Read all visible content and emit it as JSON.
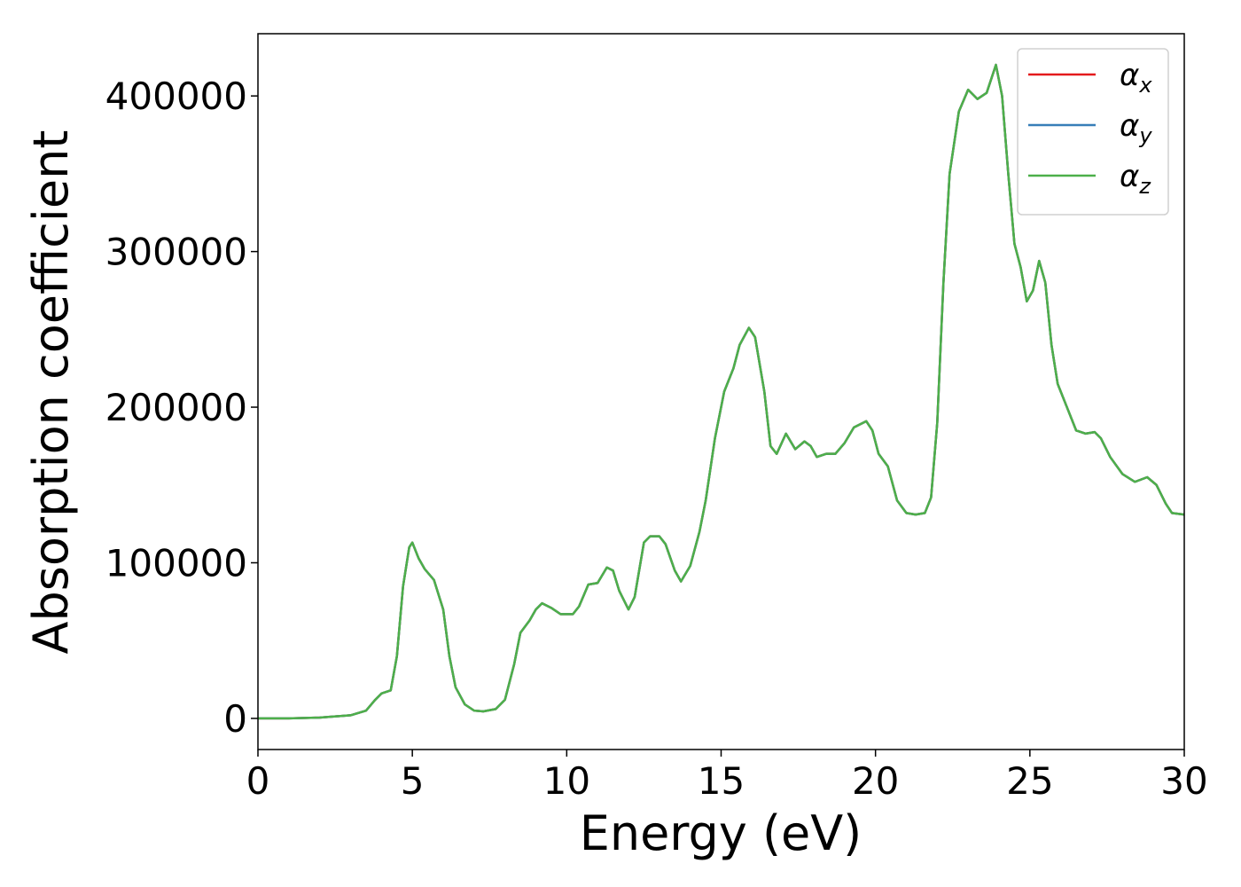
{
  "chart_data": {
    "type": "line",
    "xlabel": "Energy (eV)",
    "ylabel": "Absorption coefficient",
    "xlim": [
      0,
      30
    ],
    "ylim": [
      -20000,
      440000
    ],
    "xticks": [
      0,
      5,
      10,
      15,
      20,
      25,
      30
    ],
    "yticks": [
      0,
      100000,
      200000,
      300000,
      400000
    ],
    "legend": "upper right",
    "x": [
      0,
      1,
      2,
      3,
      3.5,
      3.8,
      4,
      4.3,
      4.5,
      4.7,
      4.9,
      5.0,
      5.2,
      5.4,
      5.7,
      6.0,
      6.2,
      6.4,
      6.7,
      7.0,
      7.3,
      7.7,
      8.0,
      8.3,
      8.5,
      8.8,
      9.0,
      9.2,
      9.5,
      9.8,
      10.2,
      10.4,
      10.7,
      11.0,
      11.3,
      11.5,
      11.7,
      12.0,
      12.2,
      12.5,
      12.7,
      13.0,
      13.2,
      13.5,
      13.7,
      14.0,
      14.3,
      14.5,
      14.8,
      15.1,
      15.4,
      15.6,
      15.9,
      16.1,
      16.4,
      16.6,
      16.8,
      17.1,
      17.4,
      17.7,
      17.9,
      18.1,
      18.4,
      18.7,
      19.0,
      19.3,
      19.7,
      19.9,
      20.1,
      20.4,
      20.7,
      21.0,
      21.3,
      21.6,
      21.8,
      22.0,
      22.2,
      22.4,
      22.7,
      23.0,
      23.3,
      23.6,
      23.9,
      24.1,
      24.3,
      24.5,
      24.7,
      24.9,
      25.1,
      25.3,
      25.5,
      25.7,
      25.9,
      26.2,
      26.5,
      26.8,
      27.1,
      27.3,
      27.6,
      28.0,
      28.4,
      28.8,
      29.1,
      29.4,
      29.6,
      30.0
    ],
    "series": [
      {
        "name": "αx",
        "color": "#e41a1c",
        "values": [
          0,
          0,
          500,
          2000,
          5000,
          12000,
          16000,
          18000,
          40000,
          85000,
          110000,
          113000,
          103000,
          96000,
          89000,
          70000,
          40000,
          20000,
          9000,
          5000,
          4500,
          6000,
          12000,
          35000,
          55000,
          63000,
          70000,
          74000,
          71000,
          67000,
          67000,
          72000,
          86000,
          87000,
          97000,
          95000,
          82000,
          70000,
          78000,
          113000,
          117000,
          117000,
          112000,
          95000,
          88000,
          98000,
          120000,
          140000,
          180000,
          210000,
          225000,
          240000,
          251000,
          245000,
          210000,
          175000,
          170000,
          183000,
          173000,
          178000,
          175000,
          168000,
          170000,
          170000,
          177000,
          187000,
          191000,
          185000,
          170000,
          162000,
          140000,
          132000,
          131000,
          132000,
          142000,
          190000,
          280000,
          350000,
          390000,
          404000,
          398000,
          402000,
          420000,
          400000,
          350000,
          305000,
          290000,
          268000,
          275000,
          294000,
          280000,
          240000,
          215000,
          200000,
          185000,
          183000,
          184000,
          180000,
          168000,
          157000,
          152000,
          155000,
          150000,
          138000,
          132000,
          131000
        ]
      },
      {
        "name": "αy",
        "color": "#377eb8",
        "values": [
          0,
          0,
          500,
          2000,
          5000,
          12000,
          16000,
          18000,
          40000,
          85000,
          110000,
          113000,
          103000,
          96000,
          89000,
          70000,
          40000,
          20000,
          9000,
          5000,
          4500,
          6000,
          12000,
          35000,
          55000,
          63000,
          70000,
          74000,
          71000,
          67000,
          67000,
          72000,
          86000,
          87000,
          97000,
          95000,
          82000,
          70000,
          78000,
          113000,
          117000,
          117000,
          112000,
          95000,
          88000,
          98000,
          120000,
          140000,
          180000,
          210000,
          225000,
          240000,
          251000,
          245000,
          210000,
          175000,
          170000,
          183000,
          173000,
          178000,
          175000,
          168000,
          170000,
          170000,
          177000,
          187000,
          191000,
          185000,
          170000,
          162000,
          140000,
          132000,
          131000,
          132000,
          142000,
          190000,
          280000,
          350000,
          390000,
          404000,
          398000,
          402000,
          420000,
          400000,
          350000,
          305000,
          290000,
          268000,
          275000,
          294000,
          280000,
          240000,
          215000,
          200000,
          185000,
          183000,
          184000,
          180000,
          168000,
          157000,
          152000,
          155000,
          150000,
          138000,
          132000,
          131000
        ]
      },
      {
        "name": "αz",
        "color": "#4daf4a",
        "values": [
          0,
          0,
          500,
          2000,
          5000,
          12000,
          16000,
          18000,
          40000,
          85000,
          110000,
          113000,
          103000,
          96000,
          89000,
          70000,
          40000,
          20000,
          9000,
          5000,
          4500,
          6000,
          12000,
          35000,
          55000,
          63000,
          70000,
          74000,
          71000,
          67000,
          67000,
          72000,
          86000,
          87000,
          97000,
          95000,
          82000,
          70000,
          78000,
          113000,
          117000,
          117000,
          112000,
          95000,
          88000,
          98000,
          120000,
          140000,
          180000,
          210000,
          225000,
          240000,
          251000,
          245000,
          210000,
          175000,
          170000,
          183000,
          173000,
          178000,
          175000,
          168000,
          170000,
          170000,
          177000,
          187000,
          191000,
          185000,
          170000,
          162000,
          140000,
          132000,
          131000,
          132000,
          142000,
          190000,
          280000,
          350000,
          390000,
          404000,
          398000,
          402000,
          420000,
          400000,
          350000,
          305000,
          290000,
          268000,
          275000,
          294000,
          280000,
          240000,
          215000,
          200000,
          185000,
          183000,
          184000,
          180000,
          168000,
          157000,
          152000,
          155000,
          150000,
          138000,
          132000,
          131000
        ]
      }
    ]
  }
}
